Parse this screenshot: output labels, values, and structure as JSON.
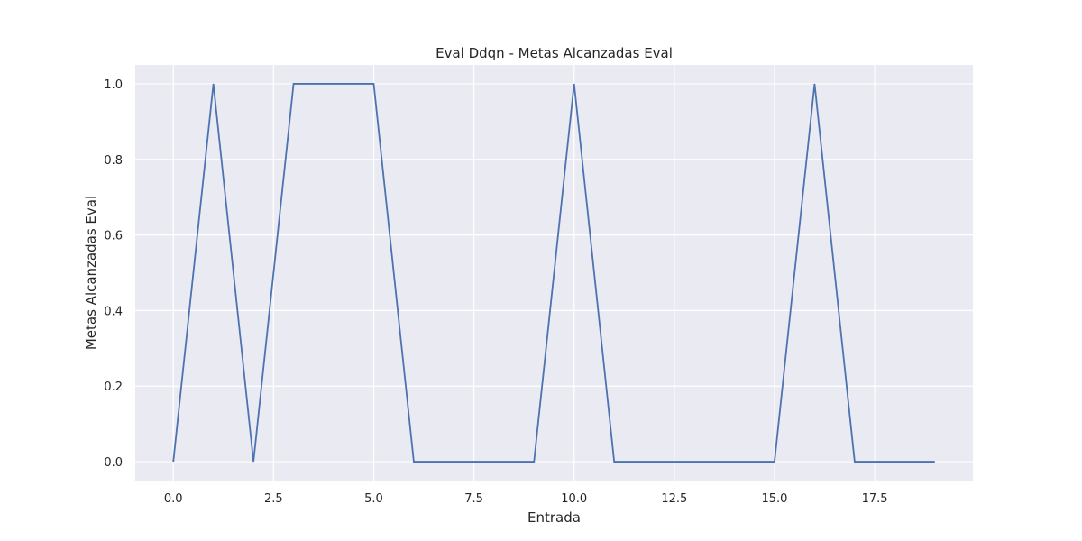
{
  "chart_data": {
    "type": "line",
    "title": "Eval Ddqn - Metas Alcanzadas Eval",
    "xlabel": "Entrada",
    "ylabel": "Metas Alcanzadas Eval",
    "x": [
      0,
      1,
      2,
      3,
      4,
      5,
      6,
      7,
      8,
      9,
      10,
      11,
      12,
      13,
      14,
      15,
      16,
      17,
      18,
      19
    ],
    "series": [
      {
        "values": [
          0,
          1,
          0,
          1,
          1,
          1,
          0,
          0,
          0,
          0,
          1,
          0,
          0,
          0,
          0,
          0,
          1,
          0,
          0,
          0
        ]
      }
    ],
    "xlim": [
      -0.95,
      19.95
    ],
    "ylim": [
      -0.05,
      1.05
    ],
    "xticks": [
      0,
      2.5,
      5,
      7.5,
      10,
      12.5,
      15,
      17.5
    ],
    "xtick_labels": [
      "0.0",
      "2.5",
      "5.0",
      "7.5",
      "10.0",
      "12.5",
      "15.0",
      "17.5"
    ],
    "yticks": [
      0,
      0.2,
      0.4,
      0.6,
      0.8,
      1.0
    ],
    "ytick_labels": [
      "0.0",
      "0.2",
      "0.4",
      "0.6",
      "0.8",
      "1.0"
    ],
    "grid": true,
    "colors": {
      "background": "#eaeaf2",
      "grid": "#ffffff",
      "line": "#4c72b0"
    }
  }
}
